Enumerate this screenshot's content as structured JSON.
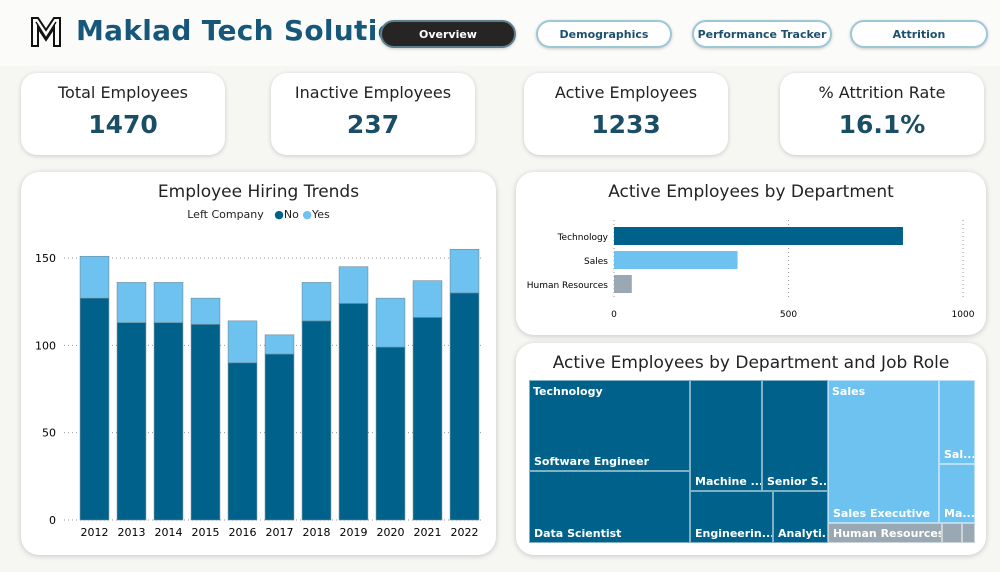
{
  "header": {
    "title": "Maklad Tech Solution",
    "logo_text": "M",
    "nav": [
      {
        "label": "Overview",
        "active": true
      },
      {
        "label": "Demographics"
      },
      {
        "label": "Performance Tracker"
      },
      {
        "label": "Attrition"
      }
    ]
  },
  "kpis": [
    {
      "label": "Total Employees",
      "value": "1470"
    },
    {
      "label": "Inactive Employees",
      "value": "237"
    },
    {
      "label": "Active Employees",
      "value": "1233"
    },
    {
      "label": "% Attrition Rate",
      "value": "16.1%"
    }
  ],
  "colors": {
    "no": "#00628a",
    "yes": "#6ec2f0",
    "hr": "#99a8b2",
    "title": "#17587a"
  },
  "chart_data": [
    {
      "type": "bar",
      "stacked": true,
      "title": "Employee Hiring Trends",
      "legend_title": "Left Company",
      "legend": "top",
      "categories": [
        "2012",
        "2013",
        "2014",
        "2015",
        "2016",
        "2017",
        "2018",
        "2019",
        "2020",
        "2021",
        "2022"
      ],
      "series": [
        {
          "name": "No",
          "values": [
            127,
            113,
            113,
            112,
            90,
            95,
            114,
            124,
            99,
            116,
            130
          ]
        },
        {
          "name": "Yes",
          "values": [
            24,
            23,
            23,
            15,
            24,
            11,
            22,
            21,
            28,
            21,
            25
          ]
        }
      ],
      "ylim": [
        0,
        150
      ],
      "yticks": [
        "0",
        "50",
        "100",
        "150"
      ],
      "grid": true
    },
    {
      "type": "bar",
      "orientation": "horizontal",
      "title": "Active Employees by Department",
      "categories": [
        "Technology",
        "Sales",
        "Human Resources"
      ],
      "values": [
        828,
        354,
        51
      ],
      "xlim": [
        0,
        1000
      ],
      "xticks": [
        "0",
        "500",
        "1000"
      ],
      "grid": true
    },
    {
      "type": "treemap",
      "title": "Active Employees by Department and Job Role",
      "groups": [
        {
          "label": "Technology",
          "children": [
            "Software Engineer",
            "Data Scientist",
            "Machine ...",
            "Senior S...",
            "Engineerin...",
            "Analyti..."
          ]
        },
        {
          "label": "Sales",
          "children": [
            "Sales Executive",
            "Sal...",
            "Ma..."
          ]
        },
        {
          "label": "Human Resources",
          "children": [
            "",
            "",
            ""
          ]
        }
      ]
    }
  ]
}
